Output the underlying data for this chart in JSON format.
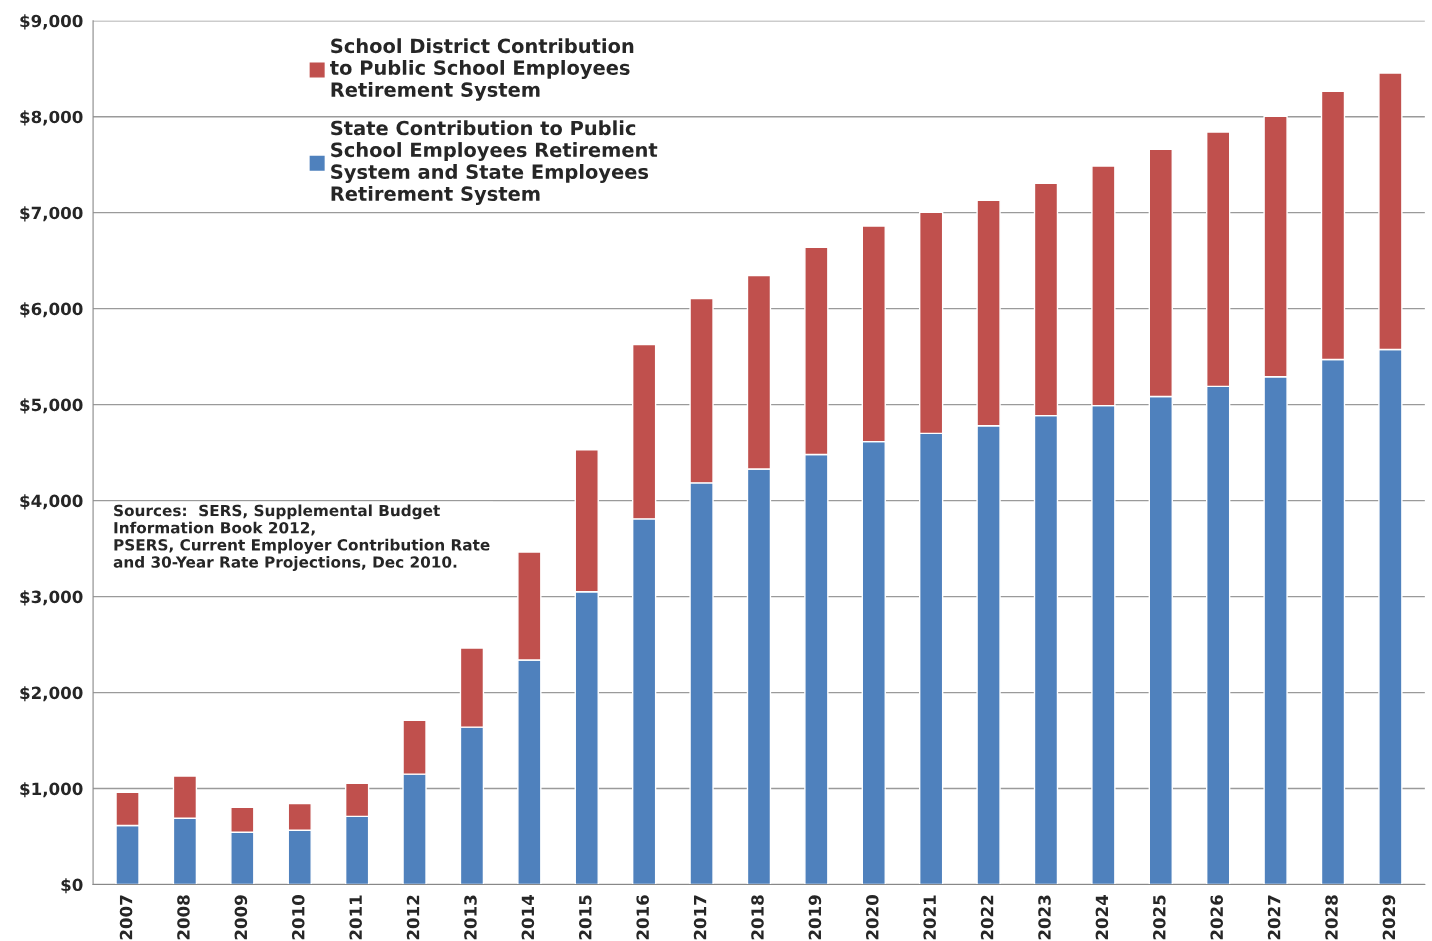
{
  "chart_data": {
    "type": "bar",
    "stacked": true,
    "categories": [
      "2007",
      "2008",
      "2009",
      "2010",
      "2011",
      "2012",
      "2013",
      "2014",
      "2015",
      "2016",
      "2017",
      "2018",
      "2019",
      "2020",
      "2021",
      "2022",
      "2023",
      "2024",
      "2025",
      "2026",
      "2027",
      "2028",
      "2029"
    ],
    "series": [
      {
        "name": "State Contribution to Public School Employees Retirement System and State Employees Retirement System",
        "color": "#4f81bd",
        "values": [
          615,
          690,
          545,
          565,
          710,
          1150,
          1640,
          2340,
          3050,
          3810,
          4185,
          4330,
          4480,
          4615,
          4700,
          4780,
          4885,
          4990,
          5085,
          5190,
          5290,
          5470,
          5575
        ]
      },
      {
        "name": "School District Contribution to Public School Employees Retirement System",
        "color": "#c0504d",
        "values": [
          345,
          440,
          260,
          280,
          345,
          560,
          825,
          1125,
          1480,
          1815,
          1920,
          2015,
          2160,
          2245,
          2305,
          2350,
          2420,
          2495,
          2575,
          2650,
          2715,
          2795,
          2880
        ]
      }
    ],
    "ylim": [
      0,
      9000
    ],
    "yticks": [
      {
        "value": 0,
        "label": "$0"
      },
      {
        "value": 1000,
        "label": "$1,000"
      },
      {
        "value": 2000,
        "label": "$2,000"
      },
      {
        "value": 3000,
        "label": "$3,000"
      },
      {
        "value": 4000,
        "label": "$4,000"
      },
      {
        "value": 5000,
        "label": "$5,000"
      },
      {
        "value": 6000,
        "label": "$6,000"
      },
      {
        "value": 7000,
        "label": "$7,000"
      },
      {
        "value": 8000,
        "label": "$8,000"
      },
      {
        "value": 9000,
        "label": "$9,000"
      }
    ],
    "grid": "y",
    "legend": "top left",
    "annotations": [
      "Sources:  SERS, Supplemental Budget\nInformation Book 2012,\nPSERS, Current Employer Contribution Rate\nand 30-Year Rate Projections, Dec 2010."
    ]
  }
}
